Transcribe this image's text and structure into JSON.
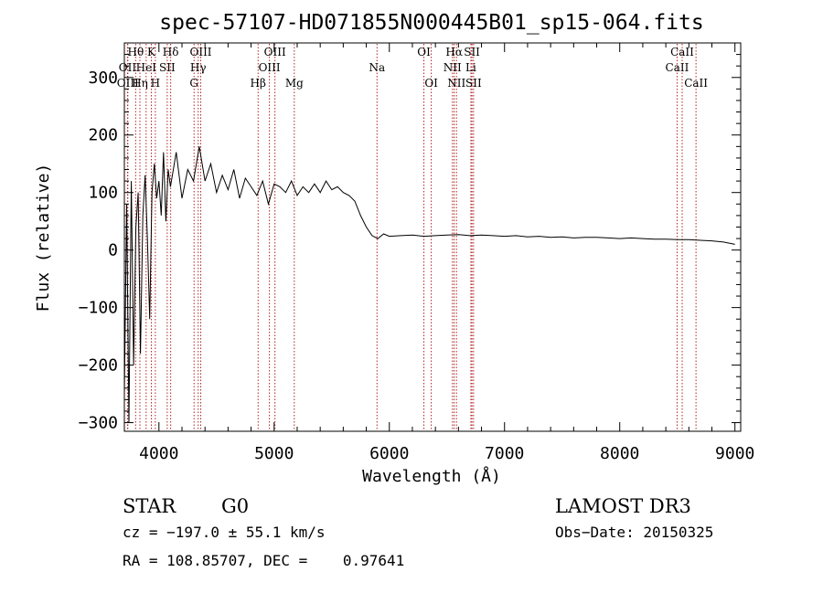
{
  "chart_data": {
    "type": "line",
    "title": "spec-57107-HD071855N000445B01_sp15-064.fits",
    "xlabel": "Wavelength (Å)",
    "ylabel": "Flux (relative)",
    "xlim": [
      3700,
      9050
    ],
    "ylim": [
      -315,
      360
    ],
    "xticks": [
      4000,
      5000,
      6000,
      7000,
      8000,
      9000
    ],
    "yticks": [
      -300,
      -200,
      -100,
      0,
      100,
      200,
      300
    ],
    "grid": false,
    "series": [
      {
        "color": "#000000",
        "x": [
          3700,
          3720,
          3740,
          3760,
          3780,
          3800,
          3820,
          3840,
          3860,
          3880,
          3900,
          3920,
          3940,
          3960,
          3980,
          4000,
          4020,
          4040,
          4060,
          4080,
          4100,
          4150,
          4200,
          4250,
          4300,
          4350,
          4400,
          4450,
          4500,
          4550,
          4600,
          4650,
          4700,
          4750,
          4800,
          4850,
          4900,
          4950,
          5000,
          5050,
          5100,
          5150,
          5200,
          5250,
          5300,
          5350,
          5400,
          5450,
          5500,
          5550,
          5600,
          5650,
          5700,
          5750,
          5800,
          5850,
          5900,
          5950,
          6000,
          6100,
          6200,
          6300,
          6400,
          6500,
          6600,
          6700,
          6800,
          6900,
          7000,
          7100,
          7200,
          7300,
          7400,
          7500,
          7600,
          7700,
          7800,
          7900,
          8000,
          8100,
          8200,
          8300,
          8400,
          8500,
          8600,
          8700,
          8800,
          8900,
          9000
        ],
        "y": [
          -250,
          80,
          -300,
          120,
          -200,
          40,
          100,
          -180,
          60,
          130,
          20,
          -120,
          100,
          150,
          90,
          120,
          60,
          170,
          50,
          140,
          110,
          170,
          90,
          140,
          120,
          180,
          120,
          150,
          100,
          130,
          105,
          140,
          90,
          125,
          110,
          95,
          120,
          80,
          115,
          110,
          100,
          120,
          95,
          110,
          100,
          115,
          100,
          120,
          105,
          110,
          100,
          95,
          85,
          60,
          40,
          25,
          20,
          28,
          24,
          25,
          26,
          24,
          25,
          26,
          27,
          25,
          26,
          25,
          24,
          25,
          23,
          24,
          22,
          23,
          21,
          22,
          22,
          21,
          20,
          21,
          20,
          19,
          19,
          18,
          18,
          17,
          16,
          14,
          10
        ]
      }
    ],
    "spectral_lines": [
      {
        "label": "Hθ",
        "row": 1,
        "x": 3798
      },
      {
        "label": "OII",
        "row": 2,
        "x": 3727
      },
      {
        "label": "OIII",
        "row": 3,
        "x": 3730
      },
      {
        "label": "HeI",
        "row": 2,
        "x": 3889
      },
      {
        "label": "Hη",
        "row": 3,
        "x": 3835
      },
      {
        "label": "K",
        "row": 1,
        "x": 3934
      },
      {
        "label": "H",
        "row": 3,
        "x": 3969
      },
      {
        "label": "Hδ",
        "row": 1,
        "x": 4102
      },
      {
        "label": "SII",
        "row": 2,
        "x": 4072
      },
      {
        "label": "OIII",
        "row": 1,
        "x": 4363
      },
      {
        "label": "Hγ",
        "row": 2,
        "x": 4341
      },
      {
        "label": "G",
        "row": 3,
        "x": 4305
      },
      {
        "label": "Hβ",
        "row": 3,
        "x": 4861
      },
      {
        "label": "OIII",
        "row": 1,
        "x": 5007
      },
      {
        "label": "OIII",
        "row": 2,
        "x": 4959
      },
      {
        "label": "Mg",
        "row": 3,
        "x": 5175
      },
      {
        "label": "Na",
        "row": 2,
        "x": 5893
      },
      {
        "label": "OI",
        "row": 1,
        "x": 6300
      },
      {
        "label": "OI",
        "row": 3,
        "x": 6364
      },
      {
        "label": "Hα",
        "row": 1,
        "x": 6563
      },
      {
        "label": "SII",
        "row": 1,
        "x": 6717
      },
      {
        "label": "NII",
        "row": 2,
        "x": 6548
      },
      {
        "label": "Li",
        "row": 2,
        "x": 6708
      },
      {
        "label": "NII",
        "row": 3,
        "x": 6583
      },
      {
        "label": "SII",
        "row": 3,
        "x": 6731
      },
      {
        "label": "CaII",
        "row": 1,
        "x": 8542
      },
      {
        "label": "CaII",
        "row": 2,
        "x": 8498
      },
      {
        "label": "CaII",
        "row": 3,
        "x": 8662
      }
    ],
    "line_color": "#b22222"
  },
  "info": {
    "object_class": "STAR",
    "subclass": "G0",
    "survey": "LAMOST DR3",
    "cz": "cz = −197.0 ± 55.1 km/s",
    "obs_date": "Obs−Date: 20150325",
    "coords": "RA = 108.85707, DEC =    0.97641"
  }
}
